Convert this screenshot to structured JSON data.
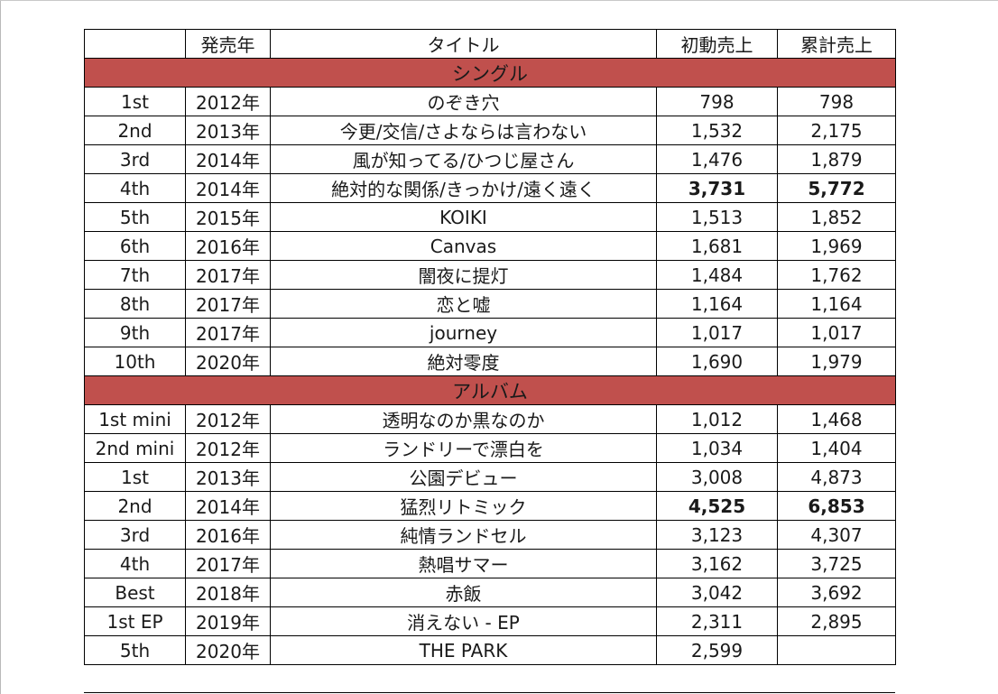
{
  "header": {
    "no": "",
    "year": "発売年",
    "title": "タイトル",
    "first_week": "初動売上",
    "total": "累計売上"
  },
  "singles_label": "シングル",
  "albums_label": "アルバム",
  "singles": [
    {
      "no": "1st",
      "year": "2012年",
      "title": "のぞき穴",
      "first": "798",
      "total": "798"
    },
    {
      "no": "2nd",
      "year": "2013年",
      "title": "今更/交信/さよならは言わない",
      "first": "1,532",
      "total": "2,175"
    },
    {
      "no": "3rd",
      "year": "2014年",
      "title": "風が知ってる/ひつじ屋さん",
      "first": "1,476",
      "total": "1,879"
    },
    {
      "no": "4th",
      "year": "2014年",
      "title": "絶対的な関係/きっかけ/遠く遠く",
      "first": "3,731",
      "total": "5,772",
      "bold": true
    },
    {
      "no": "5th",
      "year": "2015年",
      "title": "KOIKI",
      "first": "1,513",
      "total": "1,852"
    },
    {
      "no": "6th",
      "year": "2016年",
      "title": "Canvas",
      "first": "1,681",
      "total": "1,969"
    },
    {
      "no": "7th",
      "year": "2017年",
      "title": "闇夜に提灯",
      "first": "1,484",
      "total": "1,762"
    },
    {
      "no": "8th",
      "year": "2017年",
      "title": "恋と嘘",
      "first": "1,164",
      "total": "1,164"
    },
    {
      "no": "9th",
      "year": "2017年",
      "title": "journey",
      "first": "1,017",
      "total": "1,017"
    },
    {
      "no": "10th",
      "year": "2020年",
      "title": "絶対零度",
      "first": "1,690",
      "total": "1,979"
    }
  ],
  "albums": [
    {
      "no": "1st mini",
      "year": "2012年",
      "title": "透明なのか黒なのか",
      "first": "1,012",
      "total": "1,468"
    },
    {
      "no": "2nd mini",
      "year": "2012年",
      "title": "ランドリーで漂白を",
      "first": "1,034",
      "total": "1,404"
    },
    {
      "no": "1st",
      "year": "2013年",
      "title": "公園デビュー",
      "first": "3,008",
      "total": "4,873"
    },
    {
      "no": "2nd",
      "year": "2014年",
      "title": "猛烈リトミック",
      "first": "4,525",
      "total": "6,853",
      "bold": true
    },
    {
      "no": "3rd",
      "year": "2016年",
      "title": "純情ランドセル",
      "first": "3,123",
      "total": "4,307"
    },
    {
      "no": "4th",
      "year": "2017年",
      "title": "熱唱サマー",
      "first": "3,162",
      "total": "3,725"
    },
    {
      "no": "Best",
      "year": "2018年",
      "title": "赤飯",
      "first": "3,042",
      "total": "3,692"
    },
    {
      "no": "1st EP",
      "year": "2019年",
      "title": "消えない - EP",
      "first": "2,311",
      "total": "2,895"
    },
    {
      "no": "5th",
      "year": "2020年",
      "title": "THE PARK",
      "first": "2,599",
      "total": ""
    }
  ],
  "colors": {
    "section_fill": "#c0504d",
    "border": "#000000"
  }
}
